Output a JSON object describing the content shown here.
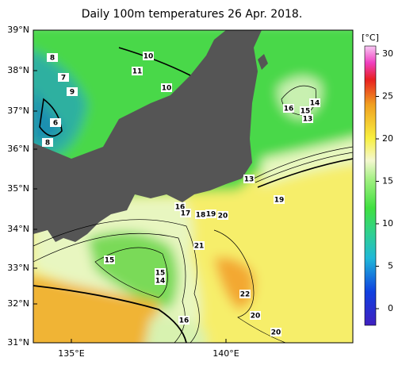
{
  "title": "Daily 100m temperatures 26 Apr. 2018.",
  "lat_labels": [
    "39°N",
    "38°N",
    "37°N",
    "36°N",
    "35°N",
    "34°N",
    "33°N",
    "32°N",
    "31°N"
  ],
  "lon_labels": [
    "135°E",
    "140°E"
  ],
  "colorbar": {
    "unit": "[°C]",
    "ticks": [
      "30",
      "25",
      "20",
      "15",
      "10",
      "5",
      "0"
    ]
  },
  "contour_labels": [
    "8",
    "7",
    "9",
    "6",
    "8",
    "10",
    "11",
    "10",
    "16",
    "15",
    "14",
    "13",
    "13",
    "19",
    "16",
    "17",
    "18",
    "19",
    "20",
    "21",
    "15",
    "15",
    "14",
    "22",
    "20",
    "16",
    "20"
  ]
}
